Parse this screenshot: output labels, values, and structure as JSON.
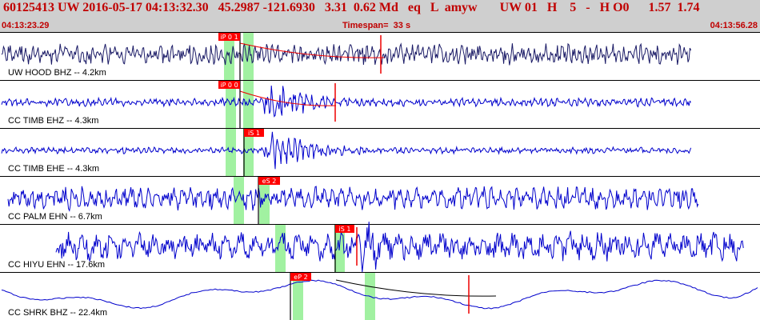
{
  "header": {
    "event_line": "60125413 UW 2016-05-17 04:13:32.30   45.2987 -121.6930   3.31  0.62 Md   eq   L  amyw       UW 01   H    5   -   H O0      1.57  1.74",
    "start_time": "04:13:23.29",
    "timespan": "Timespan=  33 s",
    "end_time": "04:13:56.28"
  },
  "colors": {
    "header_bg": "#cfcfcf",
    "header_text": "#c00000",
    "trace_line_dark": "#1a1a66",
    "trace_line_blue": "#0000cc",
    "pick_marker": "#ee0000",
    "window_shade": "#90ee90"
  },
  "traces": [
    {
      "label": "UW HOOD BHZ -- 4.2km",
      "picks": [
        {
          "label": "iP 0 1"
        }
      ]
    },
    {
      "label": "CC TIMB EHZ -- 4.3km",
      "picks": [
        {
          "label": "iP 0 0"
        }
      ]
    },
    {
      "label": "CC TIMB EHE -- 4.3km",
      "picks": [
        {
          "label": "iS 1"
        }
      ]
    },
    {
      "label": "CC PALM EHN -- 6.7km",
      "picks": [
        {
          "label": "eS 2"
        }
      ]
    },
    {
      "label": "CC HIYU EHN -- 17.6km",
      "picks": [
        {
          "label": "iS 1"
        }
      ]
    },
    {
      "label": "CC SHRK BHZ -- 22.4km",
      "picks": [
        {
          "label": "eP 2"
        }
      ]
    }
  ]
}
